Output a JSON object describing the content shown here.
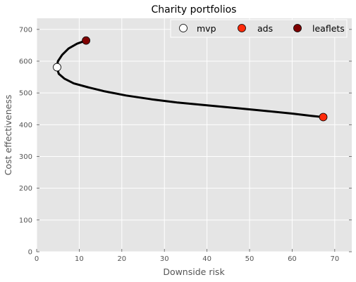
{
  "chart_data": {
    "type": "line",
    "title": "Charity portfolios",
    "xlabel": "Downside risk",
    "ylabel": "Cost effectiveness",
    "xlim": [
      0,
      74
    ],
    "ylim": [
      0,
      735
    ],
    "xticks": [
      0,
      10,
      20,
      30,
      40,
      50,
      60,
      70
    ],
    "yticks": [
      0,
      100,
      200,
      300,
      400,
      500,
      600,
      700
    ],
    "grid": true,
    "legend_placement": "top-right",
    "frontier": {
      "x": [
        11.6,
        9.5,
        7.5,
        6.0,
        5.0,
        4.7,
        5.2,
        6.5,
        8.7,
        12.0,
        16.0,
        21.0,
        27.0,
        33.0,
        40.0,
        47.0,
        54.0,
        60.0,
        64.5,
        67.3
      ],
      "y": [
        665,
        655,
        640,
        620,
        600,
        581,
        560,
        545,
        530,
        518,
        505,
        492,
        480,
        470,
        461,
        452,
        443,
        435,
        428,
        424
      ]
    },
    "points": [
      {
        "name": "mvp",
        "x": 4.8,
        "y": 581,
        "color": "#ffffff"
      },
      {
        "name": "ads",
        "x": 67.3,
        "y": 424,
        "color": "#ff2a0a"
      },
      {
        "name": "leaflets",
        "x": 11.6,
        "y": 665,
        "color": "#7f0000"
      }
    ],
    "colors": {
      "background": "#e5e5e5",
      "grid": "#ffffff",
      "line": "#000000"
    }
  }
}
